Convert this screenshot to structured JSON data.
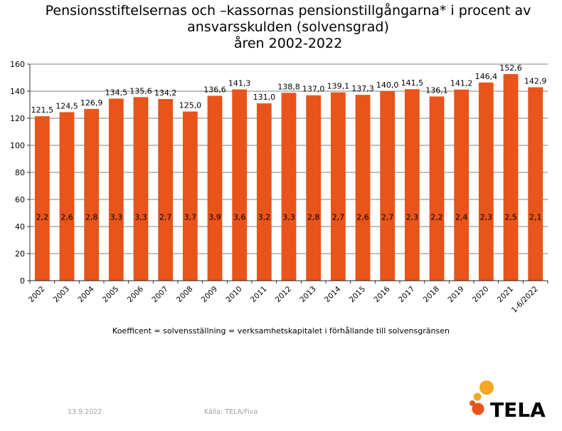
{
  "title_lines": [
    "Pensionsstiftelsernas och –kassornas pensionstillgångarna* i procent av",
    "ansvarsskulden (solvensgrad)",
    "åren 2002-2022"
  ],
  "note": "Koefficent = solvensställning = verksamhetskapitalet i förhållande till solvensgränsen",
  "footer": {
    "date": "13.9.2022",
    "source": "Källa: TELA/Fiva"
  },
  "logo": {
    "text": "TELA",
    "colors": [
      "#f5a623",
      "#e8541a"
    ]
  },
  "colors": {
    "bar": "#e8541a",
    "grid": "#000000"
  },
  "chart_data": {
    "type": "bar",
    "categories": [
      "2002",
      "2003",
      "2004",
      "2005",
      "2006",
      "2007",
      "2008",
      "2009",
      "2010",
      "2011",
      "2012",
      "2013",
      "2014",
      "2015",
      "2016",
      "2017",
      "2018",
      "2019",
      "2020",
      "2021",
      "1-6/2022"
    ],
    "values": [
      121.5,
      124.5,
      126.9,
      134.5,
      135.6,
      134.2,
      125.0,
      136.6,
      141.3,
      131.0,
      138.8,
      137.0,
      139.1,
      137.3,
      140.0,
      141.5,
      136.1,
      141.2,
      146.4,
      152.6,
      142.9
    ],
    "value_labels": [
      "121,5",
      "124,5",
      "126,9",
      "134,5",
      "135,6",
      "134,2",
      "125,0",
      "136,6",
      "141,3",
      "131,0",
      "138,8",
      "137,0",
      "139,1",
      "137,3",
      "140,0",
      "141,5",
      "136,1",
      "141,2",
      "146,4",
      "152,6",
      "142,9"
    ],
    "coefficient_labels": [
      "2,2",
      "2,6",
      "2,8",
      "3,3",
      "3,3",
      "2,7",
      "3,7",
      "3,9",
      "3,6",
      "3,2",
      "3,3",
      "2,8",
      "2,7",
      "2,6",
      "2,7",
      "2,3",
      "2,2",
      "2,4",
      "2,3",
      "2,5",
      "2,1"
    ],
    "ylim": [
      0,
      160
    ],
    "yticks": [
      0,
      20,
      40,
      60,
      80,
      100,
      120,
      140,
      160
    ],
    "grid": true
  }
}
